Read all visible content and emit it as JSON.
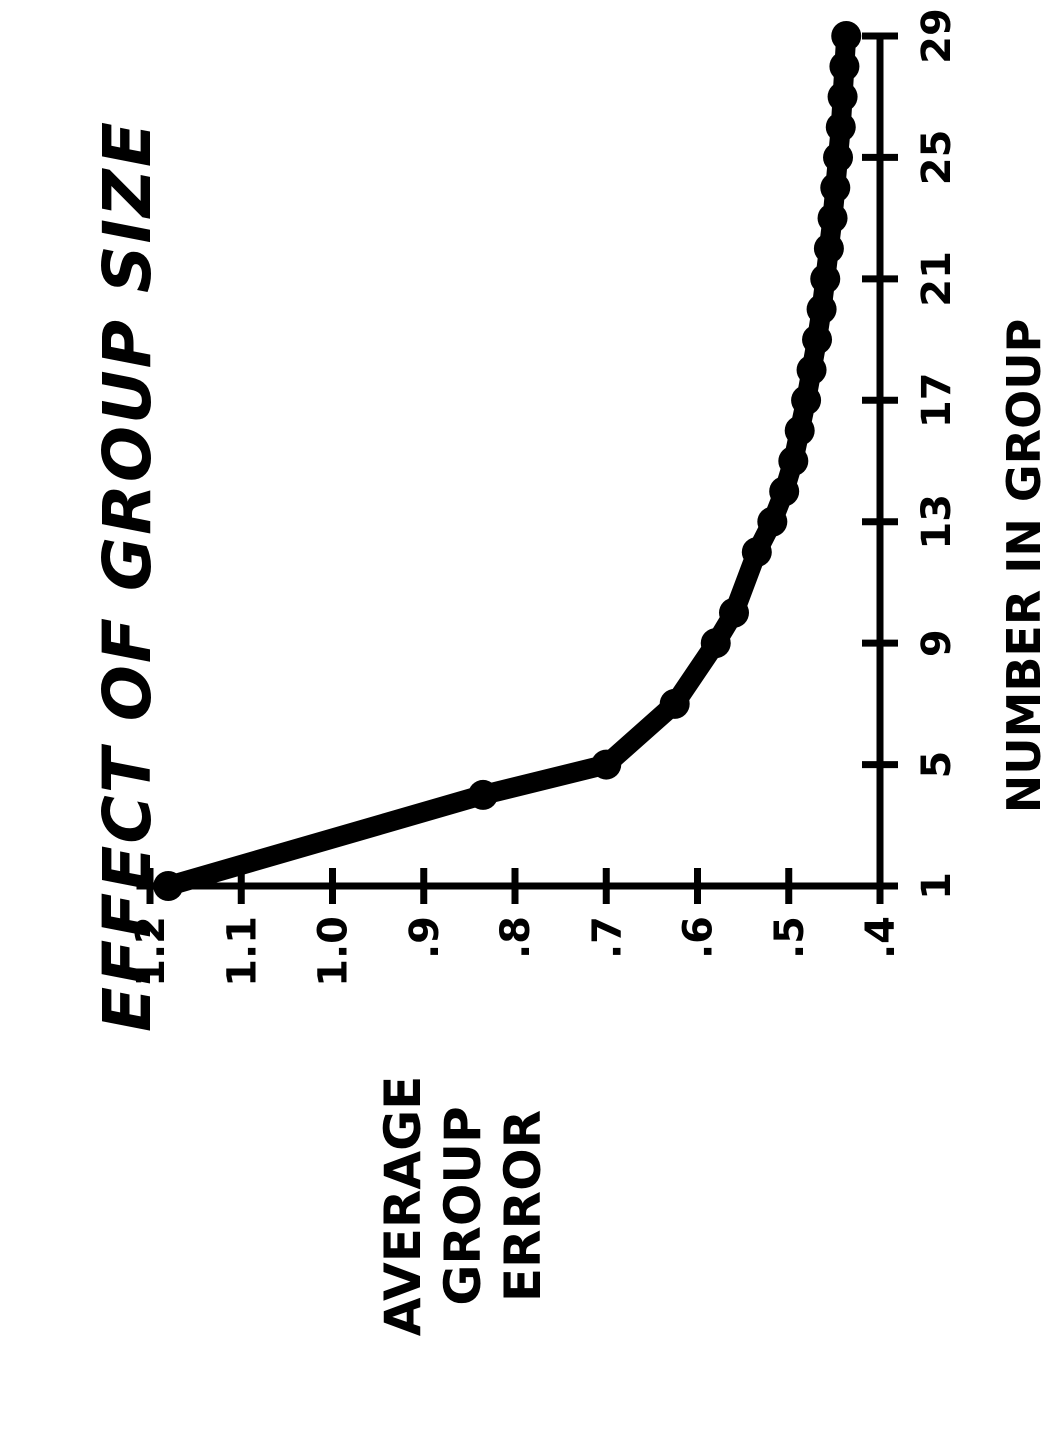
{
  "chart_data": {
    "type": "line",
    "title": "EFFECT OF GROUP SIZE",
    "xlabel": "NUMBER IN GROUP",
    "ylabel_lines": [
      "AVERAGE",
      "GROUP",
      "ERROR"
    ],
    "x_ticks": [
      "1",
      "5",
      "9",
      "13",
      "17",
      "21",
      "25",
      "29"
    ],
    "y_ticks": [
      "1.2",
      "1.1",
      "1.0",
      ".9",
      ".8",
      ".7",
      ".6",
      ".5",
      ".4"
    ],
    "xlim": [
      1,
      29
    ],
    "ylim": [
      0.4,
      1.2
    ],
    "grid": false,
    "orientation": "rotated 90° counter-clockwise",
    "series": [
      {
        "x": [
          1,
          4,
          5,
          7,
          9,
          10,
          12,
          13,
          14,
          15,
          16,
          17,
          18,
          19,
          20,
          21,
          22,
          23,
          24,
          25,
          26,
          27,
          28,
          29
        ],
        "y": [
          1.18,
          0.835,
          0.7,
          0.625,
          0.58,
          0.56,
          0.535,
          0.518,
          0.505,
          0.495,
          0.488,
          0.481,
          0.475,
          0.469,
          0.464,
          0.46,
          0.456,
          0.452,
          0.449,
          0.446,
          0.443,
          0.441,
          0.439,
          0.437
        ]
      }
    ]
  }
}
